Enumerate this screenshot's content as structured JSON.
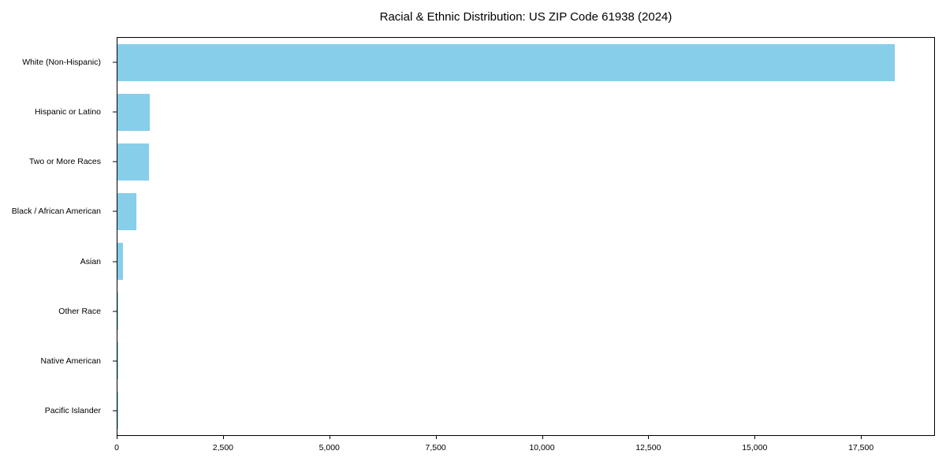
{
  "title": "Racial & Ethnic Distribution: US ZIP Code 61938 (2024)",
  "chart_data": {
    "type": "bar",
    "orientation": "horizontal",
    "title": "Racial & Ethnic Distribution: US ZIP Code 61938 (2024)",
    "xlabel": "",
    "ylabel": "",
    "categories": [
      "White (Non-Hispanic)",
      "Hispanic or Latino",
      "Two or More Races",
      "Black / African American",
      "Asian",
      "Other Race",
      "Native American",
      "Pacific Islander"
    ],
    "values": [
      18320,
      755,
      740,
      450,
      130,
      25,
      8,
      3
    ],
    "xlim": [
      0,
      19240
    ],
    "xticks": [
      0,
      2500,
      5000,
      7500,
      10000,
      12500,
      15000,
      17500
    ],
    "xtick_labels": [
      "0",
      "2,500",
      "5,000",
      "7,500",
      "10,000",
      "12,500",
      "15,000",
      "17,500"
    ],
    "bar_color": "#87CEEB",
    "frame_color": "#000000",
    "background": "#ffffff",
    "grid": false,
    "legend": null
  }
}
